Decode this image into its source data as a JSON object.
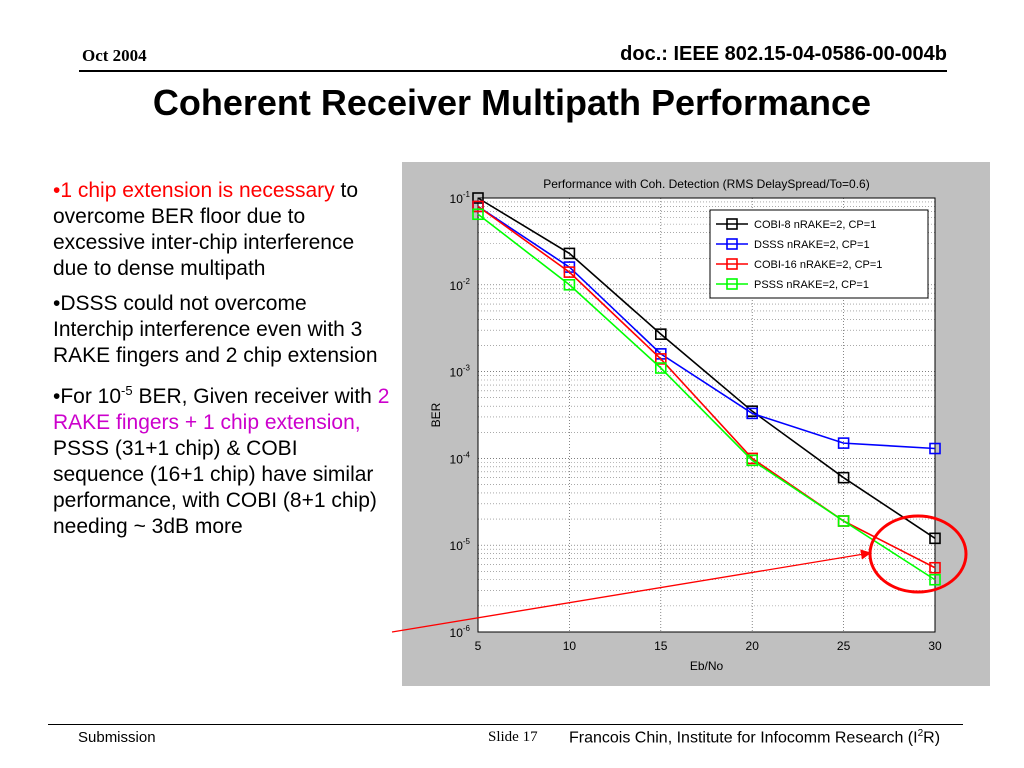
{
  "header": {
    "date": "Oct 2004",
    "doc_id": "doc.: IEEE 802.15-04-0586-00-004b"
  },
  "title": "Coherent Receiver Multipath Performance",
  "bullets": {
    "b1_red": "•1 chip extension is necessary",
    "b1_rest": " to overcome BER floor due to excessive inter-chip interference due to dense multipath",
    "b2": "•DSSS could not overcome Interchip interference even with 3 RAKE fingers and 2 chip extension",
    "b3_pre": "•For 10",
    "b3_sup": "-5",
    "b3_mid": " BER, Given receiver with ",
    "b3_mag": "2 RAKE fingers + 1 chip extension,",
    "b3_rest": " PSSS (31+1 chip) & COBI sequence (16+1 chip) have similar performance, with COBI (8+1 chip) needing ~ 3dB more"
  },
  "footer": {
    "left": "Submission",
    "slide": "Slide 17",
    "right_pre": "Francois Chin, Institute for Infocomm Research (I",
    "right_sup": "2",
    "right_post": "R)"
  },
  "colors": {
    "cobi8": "#000000",
    "dsss": "#0000ff",
    "cobi16": "#ff0000",
    "psss": "#00ff00",
    "highlight": "#ff0000"
  },
  "chart_data": {
    "type": "line",
    "title": "Performance with Coh. Detection (RMS DelaySpread/To=0.6)",
    "xlabel": "Eb/No",
    "ylabel": "BER",
    "y_scale": "log",
    "xlim": [
      5,
      30
    ],
    "ylim": [
      1e-06,
      0.1
    ],
    "x_ticks": [
      "5",
      "10",
      "15",
      "20",
      "25",
      "30"
    ],
    "y_ticks": [
      {
        "base": "10",
        "exp": "-1"
      },
      {
        "base": "10",
        "exp": "-2"
      },
      {
        "base": "10",
        "exp": "-3"
      },
      {
        "base": "10",
        "exp": "-4"
      },
      {
        "base": "10",
        "exp": "-5"
      },
      {
        "base": "10",
        "exp": "-6"
      }
    ],
    "grid": true,
    "legend_position": "top-right",
    "x": [
      5,
      10,
      15,
      20,
      25,
      30
    ],
    "series": [
      {
        "name": "COBI-8  nRAKE=2, CP=1",
        "color": "#000000",
        "values": [
          0.1,
          0.023,
          0.0027,
          0.00035,
          6e-05,
          1.2e-05
        ]
      },
      {
        "name": "DSSS   nRAKE=2, CP=1",
        "color": "#0000ff",
        "values": [
          0.08,
          0.016,
          0.0016,
          0.00033,
          0.00015,
          0.00013
        ]
      },
      {
        "name": "COBI-16  nRAKE=2, CP=1",
        "color": "#ff0000",
        "values": [
          0.08,
          0.014,
          0.0014,
          0.0001,
          1.9e-05,
          5.5e-06
        ]
      },
      {
        "name": "PSSS   nRAKE=2, CP=1",
        "color": "#00ff00",
        "values": [
          0.065,
          0.01,
          0.0011,
          9.5e-05,
          1.9e-05,
          4e-06
        ]
      }
    ],
    "annotation": {
      "type": "ellipse-highlight-with-arrow",
      "target_x": 30
    }
  }
}
